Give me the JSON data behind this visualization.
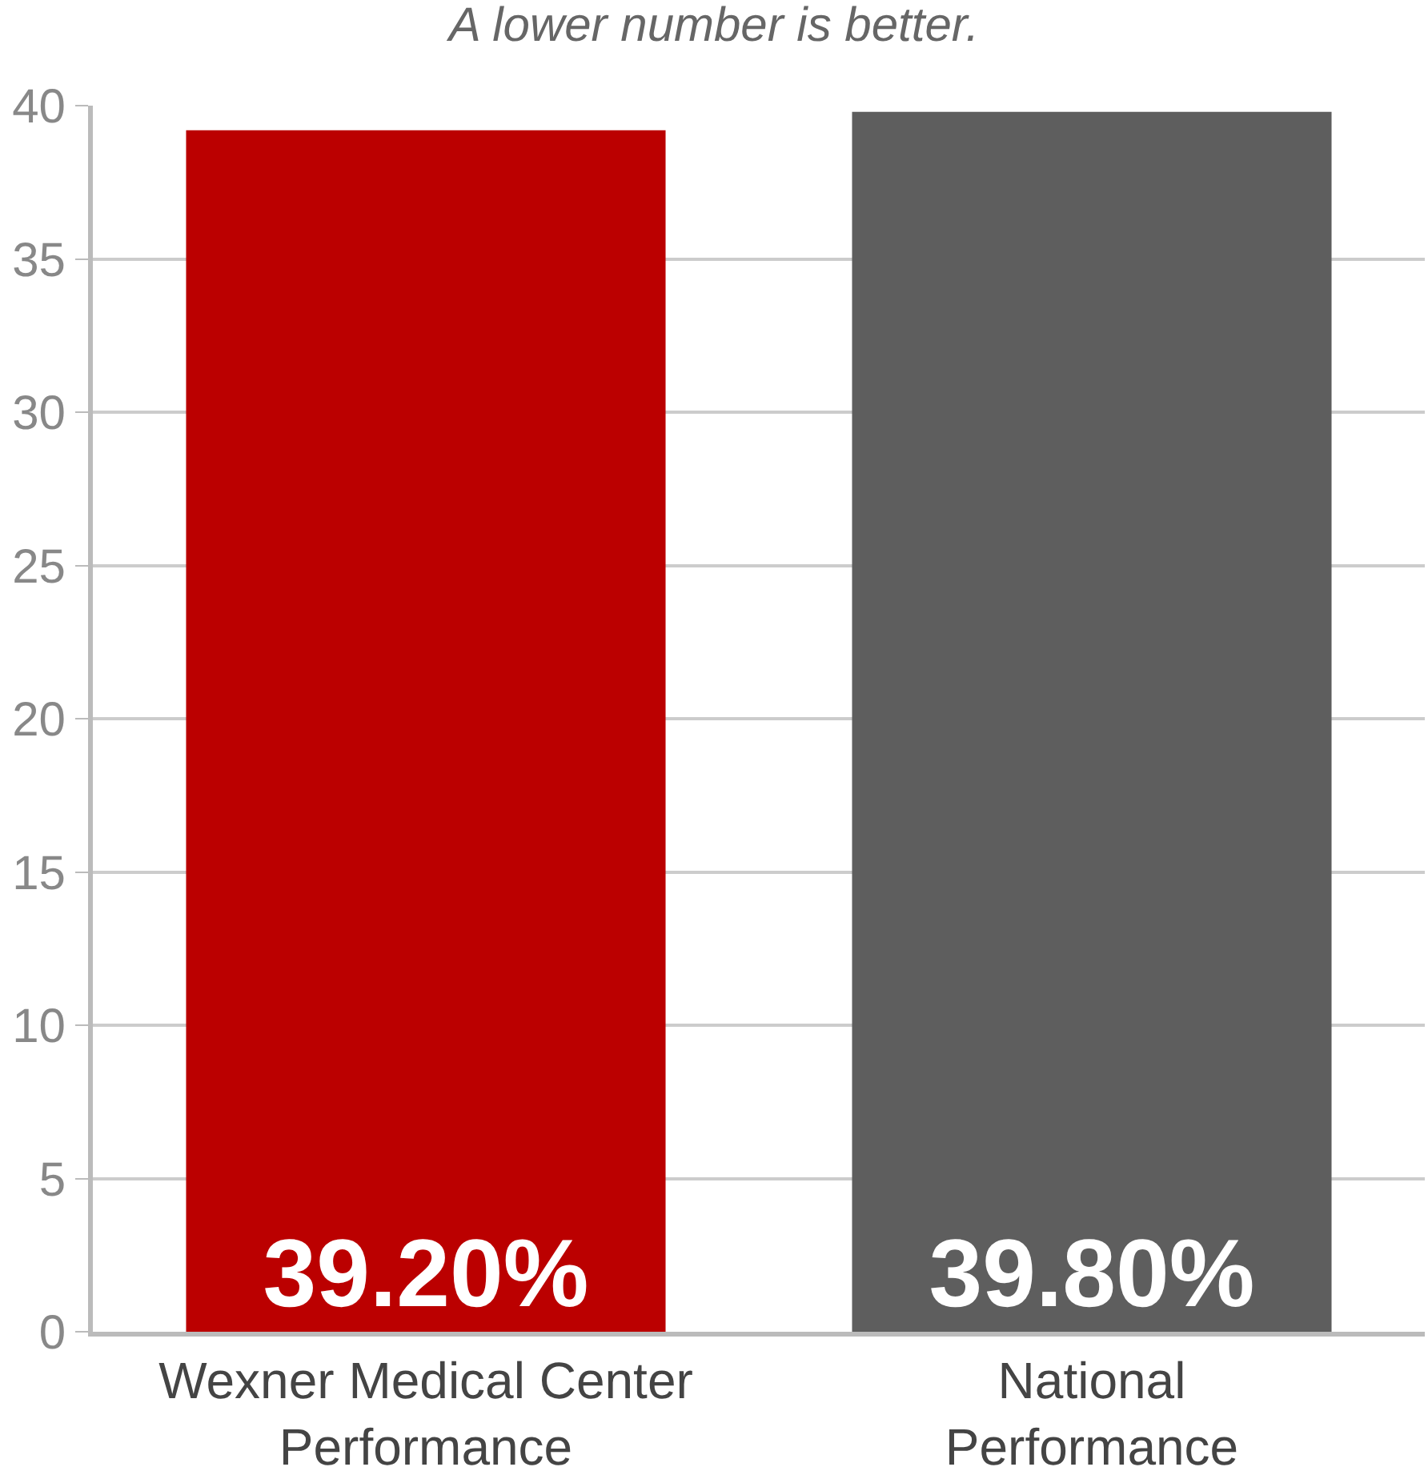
{
  "chart_data": {
    "type": "bar",
    "title": "A lower number is better.",
    "categories": [
      "Wexner Medical Center Performance",
      "National Performance"
    ],
    "values": [
      39.2,
      39.8
    ],
    "colors": [
      "#bb0000",
      "#5e5e5e"
    ],
    "value_labels": [
      "39.20%",
      "39.80%"
    ],
    "ylim": [
      0,
      40
    ],
    "yticks": [
      0,
      5,
      10,
      15,
      20,
      25,
      30,
      35,
      40
    ],
    "grid": "y"
  }
}
